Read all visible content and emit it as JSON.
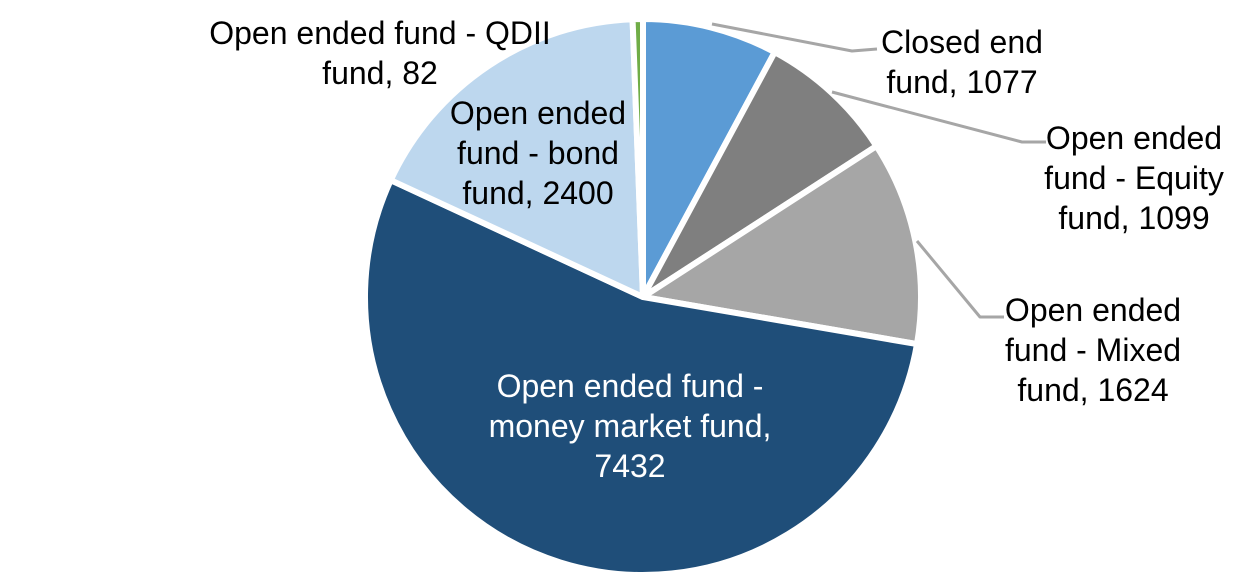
{
  "chart_data": {
    "type": "pie",
    "title": "",
    "legend": "none",
    "start_angle_deg": 0,
    "direction": "clockwise",
    "background_color": "#ffffff",
    "slice_border_color": "#ffffff",
    "leader_line_color": "#A6A6A6",
    "series": [
      {
        "id": "closed-end-fund",
        "name": "Closed end fund",
        "value": 1077,
        "color": "#5B9BD5",
        "data_label": "Closed end\nfund, 1077",
        "label_placement": "outside",
        "leader_line": true
      },
      {
        "id": "open-ended-fund-equity-fund",
        "name": "Open ended fund - Equity fund",
        "value": 1099,
        "color": "#7F7F7F",
        "data_label": "Open ended\nfund - Equity\nfund, 1099",
        "label_placement": "outside",
        "leader_line": true
      },
      {
        "id": "open-ended-fund-mixed-fund",
        "name": "Open ended fund - Mixed fund",
        "value": 1624,
        "color": "#A6A6A6",
        "data_label": "Open ended\nfund - Mixed\nfund, 1624",
        "label_placement": "outside",
        "leader_line": true
      },
      {
        "id": "open-ended-fund-money-market-fund",
        "name": "Open ended fund - money market fund",
        "value": 7432,
        "color": "#1F4E79",
        "data_label": "Open ended fund -\nmoney market fund,\n7432",
        "label_placement": "inside",
        "leader_line": false
      },
      {
        "id": "open-ended-fund-bond-fund",
        "name": "Open ended fund - bond fund",
        "value": 2400,
        "color": "#BDD7EE",
        "data_label": "Open ended\nfund - bond\nfund, 2400",
        "label_placement": "inside",
        "leader_line": false
      },
      {
        "id": "open-ended-fund-qdii-fund",
        "name": "Open ended fund - QDII fund",
        "value": 82,
        "color": "#70AD47",
        "data_label": "Open ended fund - QDII\nfund, 82",
        "label_placement": "outside",
        "leader_line": false
      }
    ]
  }
}
